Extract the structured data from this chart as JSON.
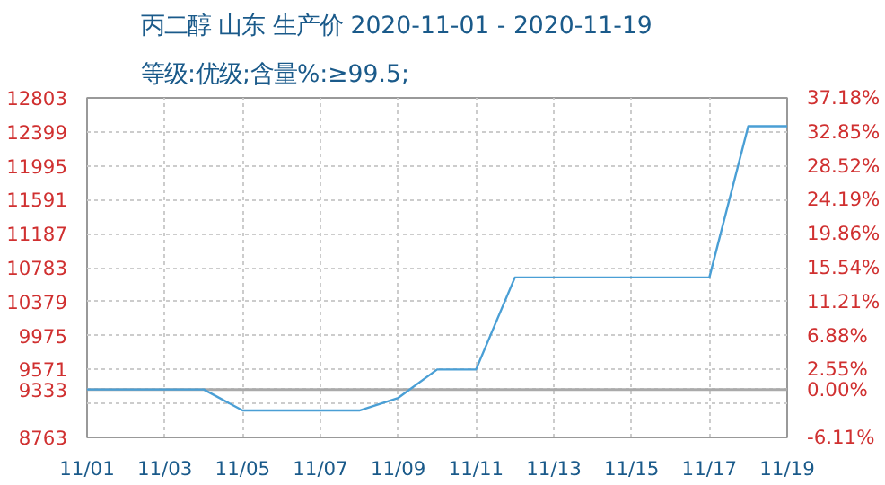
{
  "chart_data": {
    "type": "line",
    "title": "丙二醇 山东 生产价 2020-11-01 - 2020-11-19",
    "subtitle": "等级:优级;含量%:≥99.5;",
    "x": [
      "2020-11-01",
      "2020-11-02",
      "2020-11-03",
      "2020-11-04",
      "2020-11-05",
      "2020-11-06",
      "2020-11-07",
      "2020-11-08",
      "2020-11-09",
      "2020-11-10",
      "2020-11-11",
      "2020-11-12",
      "2020-11-13",
      "2020-11-14",
      "2020-11-15",
      "2020-11-16",
      "2020-11-17",
      "2020-11-18",
      "2020-11-19"
    ],
    "series": [
      {
        "color": "#4a9fd5",
        "values": [
          9333,
          9333,
          9333,
          9333,
          9083,
          9083,
          9083,
          9083,
          9233,
          9571,
          9571,
          10667,
          10667,
          10667,
          10667,
          10667,
          10667,
          12467,
          12467
        ]
      }
    ],
    "xlim": [
      "2020-11-01",
      "2020-11-19"
    ],
    "xticks": [
      {
        "value": "2020-11-01",
        "label": "11/01"
      },
      {
        "value": "2020-11-03",
        "label": "11/03"
      },
      {
        "value": "2020-11-05",
        "label": "11/05"
      },
      {
        "value": "2020-11-07",
        "label": "11/07"
      },
      {
        "value": "2020-11-09",
        "label": "11/09"
      },
      {
        "value": "2020-11-11",
        "label": "11/11"
      },
      {
        "value": "2020-11-13",
        "label": "11/13"
      },
      {
        "value": "2020-11-15",
        "label": "11/15"
      },
      {
        "value": "2020-11-17",
        "label": "11/17"
      },
      {
        "value": "2020-11-19",
        "label": "11/19"
      }
    ],
    "ylim": [
      8763,
      12803
    ],
    "yticks": [
      8763,
      {
        "value": 9167,
        "label": null
      },
      9333,
      9571,
      9975,
      10379,
      10783,
      11187,
      11591,
      11995,
      12399,
      12803
    ],
    "y2lim": [
      -6.11,
      37.18
    ],
    "y2ticks": [
      {
        "value": -6.11,
        "label": "-6.11%"
      },
      {
        "value": 0,
        "label": "0.00%"
      },
      {
        "value": 2.55,
        "label": "2.55%"
      },
      {
        "value": 6.88,
        "label": "6.88%"
      },
      {
        "value": 11.21,
        "label": "11.21%"
      },
      {
        "value": 15.54,
        "label": "15.54%"
      },
      {
        "value": 19.86,
        "label": "19.86%"
      },
      {
        "value": 24.19,
        "label": "24.19%"
      },
      {
        "value": 28.52,
        "label": "28.52%"
      },
      {
        "value": 32.85,
        "label": "32.85%"
      },
      {
        "value": 37.18,
        "label": "37.18%"
      }
    ],
    "ref_lines": [
      {
        "axis": "y",
        "value": 9333,
        "color": "#aaaaaa"
      }
    ],
    "grid": true,
    "line_style": "solid",
    "marker": "none"
  }
}
